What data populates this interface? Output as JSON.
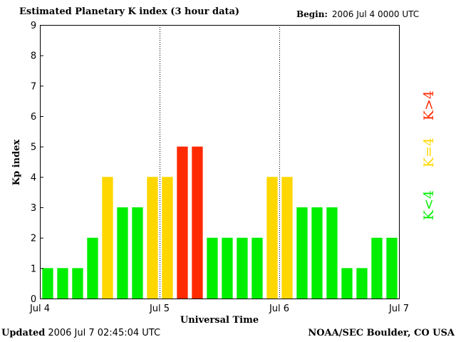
{
  "header": {
    "title": "Estimated Planetary K index (3 hour data)",
    "begin_label": "Begin:",
    "begin_value": "2006 Jul 4 0000 UTC"
  },
  "footer": {
    "updated_label": "Updated",
    "updated_value": "2006 Jul  7 02:45:04 UTC",
    "credit": "NOAA/SEC Boulder, CO USA"
  },
  "legend": [
    {
      "label": "K>4",
      "color": "#ff2a00"
    },
    {
      "label": "K=4",
      "color": "#ffd700"
    },
    {
      "label": "K<4",
      "color": "#00ee00"
    }
  ],
  "chart_data": {
    "type": "bar",
    "title": "Estimated Planetary K index (3 hour data)",
    "xlabel": "Universal Time",
    "ylabel": "Kp index",
    "ylim": [
      0,
      9
    ],
    "yticks": [
      "0",
      "1",
      "2",
      "3",
      "4",
      "5",
      "6",
      "7",
      "8",
      "9"
    ],
    "xticks": [
      "Jul 4",
      "Jul 5",
      "Jul 6",
      "Jul 7"
    ],
    "values": [
      1,
      1,
      1,
      2,
      4,
      3,
      3,
      4,
      4,
      5,
      5,
      2,
      2,
      2,
      2,
      4,
      4,
      3,
      3,
      3,
      1,
      1,
      2,
      2
    ],
    "colors": {
      "low": "#00ee00",
      "equal": "#ffd700",
      "high": "#ff2a00"
    },
    "threshold": 4,
    "day_separators": true
  }
}
